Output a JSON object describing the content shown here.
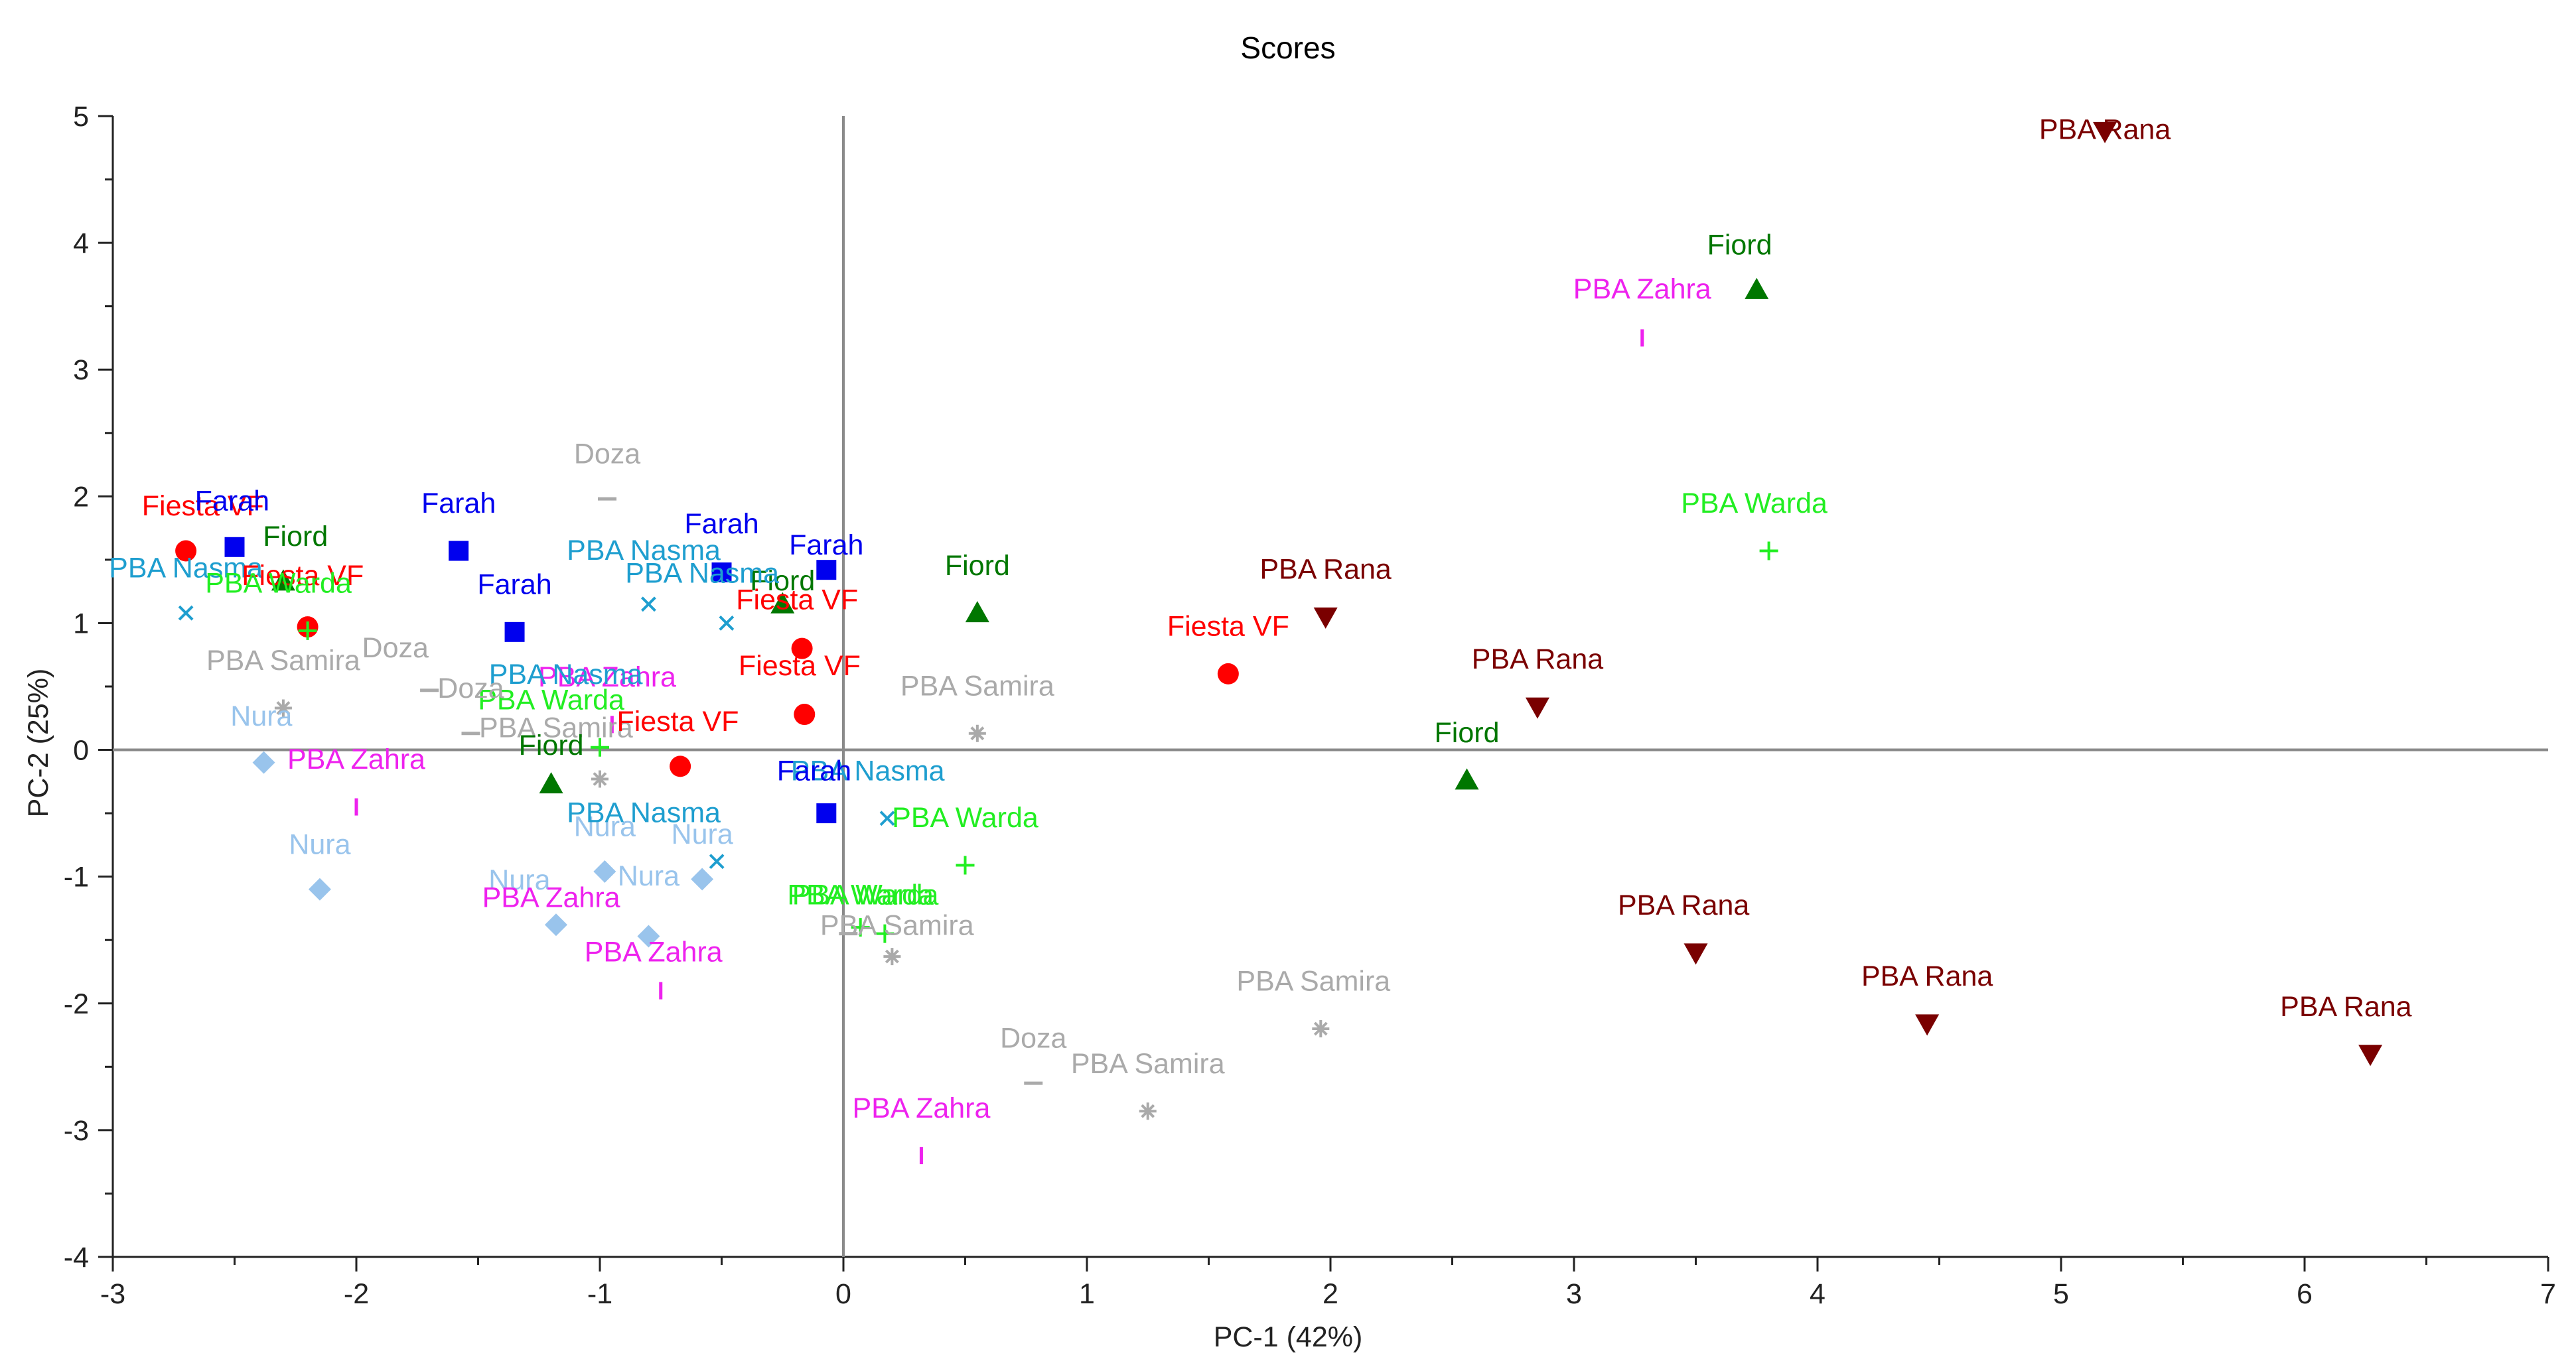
{
  "chart_data": {
    "type": "scatter",
    "title": "Scores",
    "xlabel": "PC-1 (42%)",
    "ylabel": "PC-2 (25%)",
    "xlim": [
      -3,
      7
    ],
    "ylim": [
      -4,
      5
    ],
    "xticks": [
      -3,
      -2,
      -1,
      0,
      1,
      2,
      3,
      4,
      5,
      6,
      7
    ],
    "yticks": [
      -4,
      -3,
      -2,
      -1,
      0,
      1,
      2,
      3,
      4,
      5
    ],
    "xtick_labels": [
      "-3",
      "-2",
      "-1",
      "0",
      "1",
      "2",
      "3",
      "4",
      "5",
      "6",
      "7"
    ],
    "ytick_labels": [
      "-4",
      "-3",
      "-2",
      "-1",
      "0",
      "1",
      "2",
      "3",
      "4",
      "5"
    ],
    "grid": false,
    "zero_lines": true,
    "series": [
      {
        "name": "Farah",
        "marker": "square",
        "color": "#0000ee",
        "points": [
          [
            -2.5,
            1.6
          ],
          [
            -1.58,
            1.57
          ],
          [
            -1.35,
            0.93
          ],
          [
            -0.5,
            1.4
          ],
          [
            -0.07,
            1.42
          ],
          [
            -0.07,
            -0.5
          ]
        ]
      },
      {
        "name": "Fiesta VF",
        "marker": "circle",
        "color": "#ff0000",
        "points": [
          [
            -2.7,
            1.57
          ],
          [
            -2.2,
            0.97
          ],
          [
            -0.67,
            -0.13
          ],
          [
            -0.17,
            0.8
          ],
          [
            -0.16,
            0.28
          ],
          [
            1.58,
            0.6
          ]
        ]
      },
      {
        "name": "Fiord",
        "marker": "triangle-up",
        "color": "#007700",
        "points": [
          [
            -2.3,
            1.33
          ],
          [
            -1.2,
            -0.27
          ],
          [
            -0.25,
            1.15
          ],
          [
            0.55,
            1.08
          ],
          [
            2.56,
            -0.24
          ],
          [
            3.75,
            3.63
          ]
        ]
      },
      {
        "name": "PBA Rana",
        "marker": "triangle-down",
        "color": "#7a0000",
        "points": [
          [
            5.18,
            4.88
          ],
          [
            1.98,
            1.05
          ],
          [
            2.85,
            0.34
          ],
          [
            3.5,
            -1.6
          ],
          [
            4.45,
            -2.16
          ],
          [
            6.27,
            -2.4
          ]
        ]
      },
      {
        "name": "PBA Nasma",
        "marker": "x",
        "color": "#1e9ecf",
        "points": [
          [
            -2.7,
            1.08
          ],
          [
            -0.8,
            1.15
          ],
          [
            -0.48,
            1.0
          ],
          [
            -0.52,
            -0.88
          ],
          [
            0.18,
            -0.54
          ]
        ]
      },
      {
        "name": "PBA Warda",
        "marker": "plus",
        "color": "#22ee22",
        "points": [
          [
            -2.2,
            0.94
          ],
          [
            -1.0,
            0.02
          ],
          [
            0.5,
            -0.91
          ],
          [
            0.07,
            -1.4
          ],
          [
            0.17,
            -1.45
          ],
          [
            3.8,
            1.57
          ]
        ]
      },
      {
        "name": "PBA Samira",
        "marker": "asterisk",
        "color": "#aaaaaa",
        "points": [
          [
            -2.3,
            0.33
          ],
          [
            -1.0,
            -0.23
          ],
          [
            0.55,
            0.13
          ],
          [
            0.2,
            -1.63
          ],
          [
            1.25,
            -2.85
          ],
          [
            1.96,
            -2.2
          ]
        ]
      },
      {
        "name": "Doza",
        "marker": "dash",
        "color": "#aaaaaa",
        "points": [
          [
            -0.97,
            1.98
          ],
          [
            -1.7,
            0.47
          ],
          [
            -1.53,
            0.13
          ],
          [
            0.02,
            -1.45
          ],
          [
            0.78,
            -2.63
          ]
        ]
      },
      {
        "name": "PBA Zahra",
        "marker": "bar",
        "color": "#ee22ee",
        "points": [
          [
            -2.0,
            -0.45
          ],
          [
            -0.95,
            0.2
          ],
          [
            -0.75,
            -1.9
          ],
          [
            0.32,
            -3.2
          ],
          [
            3.28,
            3.25
          ]
        ]
      },
      {
        "name": "Nura",
        "marker": "diamond",
        "color": "#99c4ec",
        "points": [
          [
            -2.38,
            -0.1
          ],
          [
            -2.15,
            -1.1
          ],
          [
            -0.98,
            -0.96
          ],
          [
            -1.18,
            -1.38
          ],
          [
            -0.8,
            -1.47
          ],
          [
            -0.58,
            -1.02
          ]
        ]
      }
    ],
    "labels": [
      {
        "text": "PBA Rana",
        "x": 5.18,
        "y": 4.88,
        "series": "PBA Rana",
        "anchor": "middle",
        "dx": 0,
        "dy": -0.06
      },
      {
        "text": "Fiord",
        "x": 3.75,
        "y": 3.63,
        "series": "Fiord",
        "anchor": "middle",
        "dx": -0.07,
        "dy": 0.28
      },
      {
        "text": "PBA Zahra",
        "x": 3.28,
        "y": 3.25,
        "series": "PBA Zahra",
        "anchor": "middle",
        "dx": 0.0,
        "dy": 0.31
      },
      {
        "text": "PBA Warda",
        "x": 3.8,
        "y": 1.57,
        "series": "PBA Warda",
        "anchor": "middle",
        "dx": -0.06,
        "dy": 0.3
      },
      {
        "text": "PBA Rana",
        "x": 1.98,
        "y": 1.05,
        "series": "PBA Rana",
        "anchor": "middle",
        "dx": 0.0,
        "dy": 0.3
      },
      {
        "text": "Fiesta VF",
        "x": 1.58,
        "y": 0.6,
        "series": "Fiesta VF",
        "anchor": "middle",
        "dx": 0.0,
        "dy": 0.3
      },
      {
        "text": "PBA Rana",
        "x": 2.85,
        "y": 0.34,
        "series": "PBA Rana",
        "anchor": "middle",
        "dx": 0.0,
        "dy": 0.3
      },
      {
        "text": "Fiord",
        "x": 2.56,
        "y": -0.24,
        "series": "Fiord",
        "anchor": "middle",
        "dx": 0.0,
        "dy": 0.3
      },
      {
        "text": "PBA Rana",
        "x": 3.5,
        "y": -1.6,
        "series": "PBA Rana",
        "anchor": "middle",
        "dx": -0.05,
        "dy": 0.3
      },
      {
        "text": "PBA Rana",
        "x": 4.45,
        "y": -2.16,
        "series": "PBA Rana",
        "anchor": "middle",
        "dx": 0.0,
        "dy": 0.3
      },
      {
        "text": "PBA Rana",
        "x": 6.27,
        "y": -2.4,
        "series": "PBA Rana",
        "anchor": "middle",
        "dx": -0.1,
        "dy": 0.3
      },
      {
        "text": "PBA Samira",
        "x": 1.96,
        "y": -2.2,
        "series": "PBA Samira",
        "anchor": "middle",
        "dx": -0.03,
        "dy": 0.3
      },
      {
        "text": "PBA Samira",
        "x": 1.25,
        "y": -2.85,
        "series": "PBA Samira",
        "anchor": "middle",
        "dx": 0.0,
        "dy": 0.3
      },
      {
        "text": "Doza",
        "x": 0.78,
        "y": -2.63,
        "series": "Doza",
        "anchor": "middle",
        "dx": 0.0,
        "dy": 0.28
      },
      {
        "text": "PBA Zahra",
        "x": 0.32,
        "y": -3.2,
        "series": "PBA Zahra",
        "anchor": "middle",
        "dx": 0.0,
        "dy": 0.3
      },
      {
        "text": "Fiord",
        "x": 0.55,
        "y": 1.08,
        "series": "Fiord",
        "anchor": "middle",
        "dx": 0.0,
        "dy": 0.3
      },
      {
        "text": "PBA Samira",
        "x": 0.55,
        "y": 0.13,
        "series": "PBA Samira",
        "anchor": "middle",
        "dx": 0.0,
        "dy": 0.3
      },
      {
        "text": "PBA Warda",
        "x": 0.5,
        "y": -0.91,
        "series": "PBA Warda",
        "anchor": "middle",
        "dx": 0.0,
        "dy": 0.3
      },
      {
        "text": "PBA Nasma",
        "x": 0.18,
        "y": -0.54,
        "series": "PBA Nasma",
        "anchor": "middle",
        "dx": -0.08,
        "dy": 0.3
      },
      {
        "text": "Farah",
        "x": -0.07,
        "y": 1.42,
        "series": "Farah",
        "anchor": "middle",
        "dx": 0.0,
        "dy": 0.12
      },
      {
        "text": "Farah",
        "x": -0.07,
        "y": -0.5,
        "series": "Farah",
        "anchor": "middle",
        "dx": -0.05,
        "dy": 0.26
      },
      {
        "text": "PBA Warda",
        "x": 0.07,
        "y": -1.4,
        "series": "PBA Warda",
        "anchor": "middle",
        "dx": 0.0,
        "dy": 0.18
      },
      {
        "text": "PBA Warda",
        "x": 0.17,
        "y": -1.45,
        "series": "PBA Warda",
        "anchor": "middle",
        "dx": -0.08,
        "dy": 0.23
      },
      {
        "text": "PBA Samira",
        "x": 0.2,
        "y": -1.63,
        "series": "PBA Samira",
        "anchor": "middle",
        "dx": 0.02,
        "dy": 0.17
      },
      {
        "text": "Fiesta VF",
        "x": -0.17,
        "y": 0.8,
        "series": "Fiesta VF",
        "anchor": "middle",
        "dx": -0.02,
        "dy": 0.31
      },
      {
        "text": "Fiesta VF",
        "x": -0.16,
        "y": 0.28,
        "series": "Fiesta VF",
        "anchor": "middle",
        "dx": -0.02,
        "dy": 0.31
      },
      {
        "text": "Fiord",
        "x": -0.25,
        "y": 1.15,
        "series": "Fiord",
        "anchor": "middle",
        "dx": 0.0,
        "dy": 0.11
      },
      {
        "text": "PBA Nasma",
        "x": -0.48,
        "y": 1.0,
        "series": "PBA Nasma",
        "anchor": "middle",
        "dx": -0.1,
        "dy": 0.32
      },
      {
        "text": "Farah",
        "x": -0.5,
        "y": 1.4,
        "series": "Farah",
        "anchor": "middle",
        "dx": 0.0,
        "dy": 0.31
      },
      {
        "text": "PBA Nasma",
        "x": -0.8,
        "y": 1.15,
        "series": "PBA Nasma",
        "anchor": "middle",
        "dx": -0.02,
        "dy": 0.35
      },
      {
        "text": "Doza",
        "x": -0.97,
        "y": 1.98,
        "series": "Doza",
        "anchor": "middle",
        "dx": 0.0,
        "dy": 0.28
      },
      {
        "text": "PBA Zahra",
        "x": -0.95,
        "y": 0.2,
        "series": "PBA Zahra",
        "anchor": "middle",
        "dx": -0.02,
        "dy": 0.3
      },
      {
        "text": "PBA Nasma",
        "x": -1.0,
        "y": 0.02,
        "series": "PBA Nasma",
        "anchor": "middle",
        "dx": -0.14,
        "dy": 0.5
      },
      {
        "text": "PBA Warda",
        "x": -1.0,
        "y": 0.02,
        "series": "PBA Warda",
        "anchor": "middle",
        "dx": -0.2,
        "dy": 0.3
      },
      {
        "text": "PBA Samira",
        "x": -1.0,
        "y": -0.23,
        "series": "PBA Samira",
        "anchor": "middle",
        "dx": -0.18,
        "dy": 0.33
      },
      {
        "text": "Fiesta VF",
        "x": -0.67,
        "y": -0.13,
        "series": "Fiesta VF",
        "anchor": "middle",
        "dx": -0.01,
        "dy": 0.28
      },
      {
        "text": "Farah",
        "x": -1.35,
        "y": 0.93,
        "series": "Farah",
        "anchor": "middle",
        "dx": 0.0,
        "dy": 0.3
      },
      {
        "text": "Farah",
        "x": -1.58,
        "y": 1.57,
        "series": "Farah",
        "anchor": "middle",
        "dx": 0.0,
        "dy": 0.3
      },
      {
        "text": "Doza",
        "x": -1.7,
        "y": 0.47,
        "series": "Doza",
        "anchor": "middle",
        "dx": -0.14,
        "dy": 0.26
      },
      {
        "text": "Doza",
        "x": -1.53,
        "y": 0.13,
        "series": "Doza",
        "anchor": "middle",
        "dx": 0.0,
        "dy": 0.28
      },
      {
        "text": "Fiord",
        "x": -1.2,
        "y": -0.27,
        "series": "Fiord",
        "anchor": "middle",
        "dx": 0.0,
        "dy": 0.23
      },
      {
        "text": "Nura",
        "x": -0.98,
        "y": -0.96,
        "series": "Nura",
        "anchor": "middle",
        "dx": 0.0,
        "dy": 0.28
      },
      {
        "text": "Nura",
        "x": -0.58,
        "y": -1.02,
        "series": "Nura",
        "anchor": "middle",
        "dx": 0.0,
        "dy": 0.28
      },
      {
        "text": "PBA Nasma",
        "x": -0.52,
        "y": -0.88,
        "series": "PBA Nasma",
        "anchor": "middle",
        "dx": -0.3,
        "dy": 0.31
      },
      {
        "text": "Nura",
        "x": -1.18,
        "y": -1.38,
        "series": "Nura",
        "anchor": "middle",
        "dx": -0.15,
        "dy": 0.28
      },
      {
        "text": "PBA Zahra",
        "x": -1.18,
        "y": -1.38,
        "series": "PBA Zahra",
        "anchor": "middle",
        "dx": -0.02,
        "dy": 0.14
      },
      {
        "text": "Nura",
        "x": -0.8,
        "y": -1.47,
        "series": "Nura",
        "anchor": "middle",
        "dx": 0.0,
        "dy": 0.4
      },
      {
        "text": "PBA Zahra",
        "x": -0.75,
        "y": -1.9,
        "series": "PBA Zahra",
        "anchor": "middle",
        "dx": -0.03,
        "dy": 0.23
      },
      {
        "text": "Fiesta VF",
        "x": -2.7,
        "y": 1.57,
        "series": "Fiesta VF",
        "anchor": "middle",
        "dx": 0.07,
        "dy": 0.28
      },
      {
        "text": "Farah",
        "x": -2.5,
        "y": 1.6,
        "series": "Farah",
        "anchor": "middle",
        "dx": -0.01,
        "dy": 0.29
      },
      {
        "text": "Fiord",
        "x": -2.3,
        "y": 1.33,
        "series": "Fiord",
        "anchor": "middle",
        "dx": 0.05,
        "dy": 0.28
      },
      {
        "text": "PBA Nasma",
        "x": -2.7,
        "y": 1.08,
        "series": "PBA Nasma",
        "anchor": "middle",
        "dx": 0.0,
        "dy": 0.28
      },
      {
        "text": "Fiesta VF",
        "x": -2.2,
        "y": 0.97,
        "series": "Fiesta VF",
        "anchor": "middle",
        "dx": -0.02,
        "dy": 0.33
      },
      {
        "text": "PBA Warda",
        "x": -2.2,
        "y": 0.94,
        "series": "PBA Warda",
        "anchor": "middle",
        "dx": -0.12,
        "dy": 0.3
      },
      {
        "text": "PBA Samira",
        "x": -2.3,
        "y": 0.33,
        "series": "PBA Samira",
        "anchor": "middle",
        "dx": 0.0,
        "dy": 0.3
      },
      {
        "text": "Nura",
        "x": -2.38,
        "y": -0.1,
        "series": "Nura",
        "anchor": "middle",
        "dx": -0.01,
        "dy": 0.29
      },
      {
        "text": "PBA Zahra",
        "x": -2.0,
        "y": -0.45,
        "series": "PBA Zahra",
        "anchor": "middle",
        "dx": 0.0,
        "dy": 0.3
      },
      {
        "text": "Nura",
        "x": -2.15,
        "y": -1.1,
        "series": "Nura",
        "anchor": "middle",
        "dx": 0.0,
        "dy": 0.28
      }
    ]
  }
}
